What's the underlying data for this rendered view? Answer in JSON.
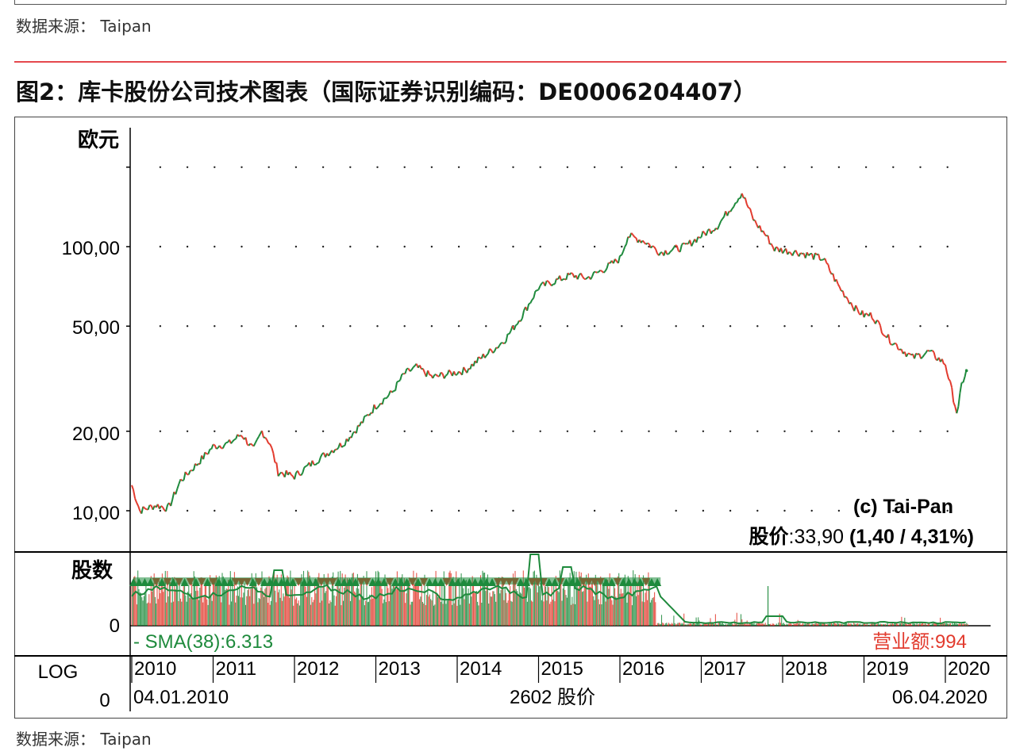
{
  "source_top": "数据来源：  Taipan",
  "source_bottom": "数据来源：  Taipan",
  "figure_title": "图2：库卡股份公司技术图表（国际证券识别编码：DE0006204407）",
  "colors": {
    "rule": "#e5484d",
    "up": "#1e8a3c",
    "down": "#e23b2e",
    "sma": "#1e8a3c",
    "turnover": "#e23b2e"
  },
  "chart_data": {
    "type": "line",
    "title": "",
    "ylabel": "欧元",
    "yscale": "log",
    "ylim": [
      9,
      165
    ],
    "yticks": [
      {
        "value": 10,
        "label": "10,00"
      },
      {
        "value": 20,
        "label": "20,00"
      },
      {
        "value": 50,
        "label": "50,00"
      },
      {
        "value": 100,
        "label": "100,00"
      }
    ],
    "grid": "dotted",
    "x_start": "04.01.2010",
    "x_end": "06.04.2020",
    "x_center_label": "2602 股价",
    "x_axis_left_label": "LOG",
    "x_axis_left_value": "0",
    "years": [
      "2010",
      "2011",
      "2012",
      "2013",
      "2014",
      "2015",
      "2016",
      "2017",
      "2018",
      "2019",
      "2020"
    ],
    "series": [
      {
        "name": "股价",
        "x": [
          2010.0,
          2010.1,
          2010.3,
          2010.45,
          2010.6,
          2010.8,
          2011.0,
          2011.2,
          2011.35,
          2011.5,
          2011.6,
          2011.7,
          2011.8,
          2012.0,
          2012.2,
          2012.4,
          2012.6,
          2012.8,
          2013.0,
          2013.2,
          2013.35,
          2013.5,
          2013.7,
          2013.9,
          2014.1,
          2014.3,
          2014.5,
          2014.6,
          2014.8,
          2015.0,
          2015.2,
          2015.4,
          2015.6,
          2015.8,
          2016.0,
          2016.1,
          2016.3,
          2016.5,
          2016.8,
          2017.0,
          2017.2,
          2017.5,
          2017.65,
          2017.8,
          2017.9,
          2018.2,
          2018.5,
          2018.7,
          2018.9,
          2019.0,
          2019.1,
          2019.3,
          2019.5,
          2019.6,
          2019.8,
          2020.0,
          2020.15,
          2020.2,
          2020.26
        ],
        "values": [
          12.5,
          10.0,
          10.5,
          10.2,
          13.0,
          15.0,
          17.5,
          18.0,
          19.5,
          17.0,
          20.0,
          18.0,
          14.0,
          13.5,
          15.0,
          16.5,
          18.0,
          21.0,
          25.0,
          28.0,
          33.0,
          35.0,
          32.0,
          33.0,
          34.0,
          38.0,
          42.0,
          45.0,
          55.0,
          70.0,
          74.0,
          78.0,
          76.0,
          82.0,
          90.0,
          110.0,
          105.0,
          95.0,
          100.0,
          110.0,
          120.0,
          160.0,
          125.0,
          110.0,
          98.0,
          95.0,
          90.0,
          70.0,
          58.0,
          55.0,
          55.0,
          45.0,
          40.0,
          38.0,
          40.0,
          36.0,
          23.0,
          30.0,
          33.9
        ]
      }
    ],
    "watermark": "(c) Tai-Pan",
    "price_label": "股价",
    "price_value": ":33,90 ",
    "price_change": "(1,40 / 4,31%)",
    "volume_panel": {
      "ylabel": "股数",
      "y_zero_label": "0",
      "sma_label": "- SMA(38):6.313",
      "turnover_label": "营业额:994"
    }
  }
}
